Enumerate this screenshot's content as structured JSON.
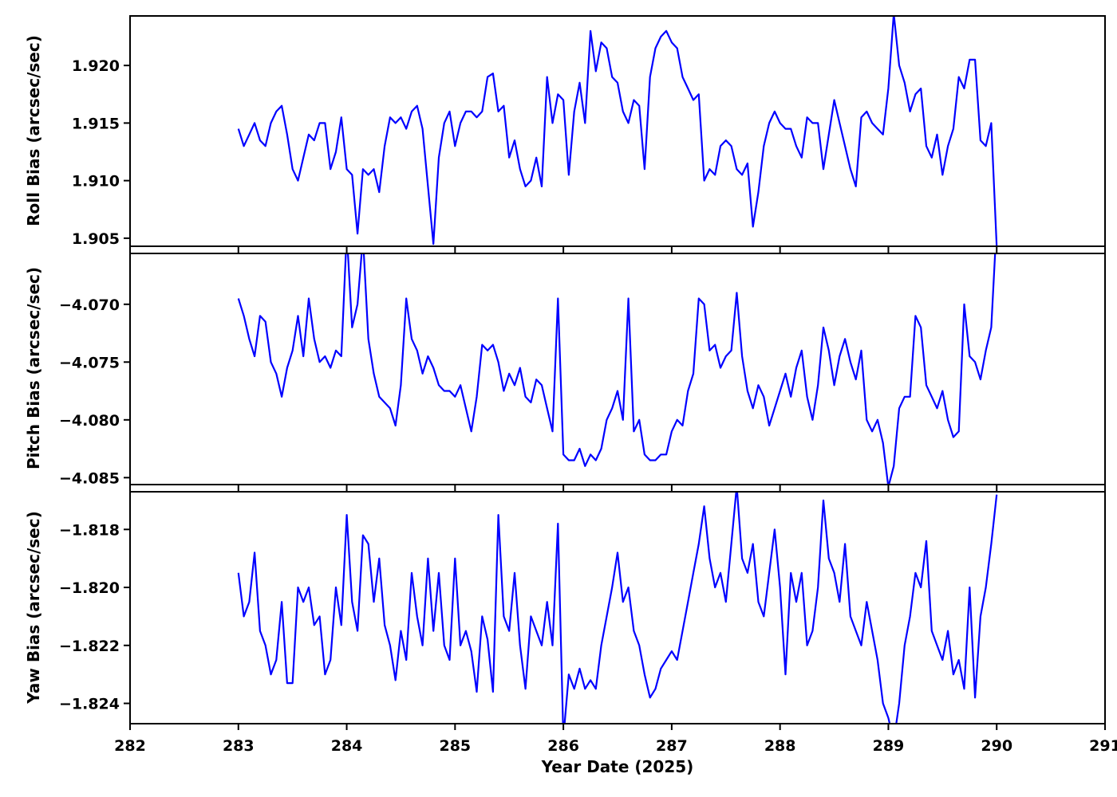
{
  "xlabel": "Year Date (2025)",
  "xlim": [
    282,
    291
  ],
  "x_ticks": [
    282,
    283,
    284,
    285,
    286,
    287,
    288,
    289,
    290,
    291
  ],
  "x_tick_labels": [
    "282",
    "283",
    "284",
    "285",
    "286",
    "287",
    "288",
    "289",
    "290",
    "291"
  ],
  "line_color": "#0000ff",
  "background_color": "#ffffff",
  "chart_data": [
    {
      "type": "line",
      "name": "roll-bias",
      "ylabel": "Roll Bias (arcsec/sec)",
      "ylim": [
        1.9043,
        1.9243
      ],
      "y_ticks": [
        1.905,
        1.91,
        1.915,
        1.92
      ],
      "y_tick_labels": [
        "1.905",
        "1.910",
        "1.915",
        "1.920"
      ],
      "x_start": 283.0,
      "x_step": 0.05,
      "y": [
        1.9145,
        1.913,
        1.914,
        1.915,
        1.9135,
        1.913,
        1.915,
        1.916,
        1.9165,
        1.914,
        1.911,
        1.91,
        1.912,
        1.914,
        1.9135,
        1.915,
        1.915,
        1.911,
        1.9125,
        1.9155,
        1.911,
        1.9105,
        1.9054,
        1.911,
        1.9105,
        1.911,
        1.909,
        1.913,
        1.9155,
        1.915,
        1.9155,
        1.9145,
        1.916,
        1.9165,
        1.9145,
        1.9095,
        1.9045,
        1.912,
        1.915,
        1.916,
        1.913,
        1.915,
        1.916,
        1.916,
        1.9155,
        1.916,
        1.919,
        1.9193,
        1.916,
        1.9165,
        1.912,
        1.9135,
        1.911,
        1.9095,
        1.91,
        1.912,
        1.9095,
        1.919,
        1.915,
        1.9175,
        1.917,
        1.9105,
        1.916,
        1.9185,
        1.915,
        1.923,
        1.9195,
        1.922,
        1.9215,
        1.919,
        1.9185,
        1.916,
        1.915,
        1.917,
        1.9165,
        1.911,
        1.919,
        1.9215,
        1.9225,
        1.923,
        1.922,
        1.9215,
        1.919,
        1.918,
        1.917,
        1.9175,
        1.91,
        1.911,
        1.9105,
        1.913,
        1.9135,
        1.913,
        1.911,
        1.9105,
        1.9115,
        1.906,
        1.909,
        1.913,
        1.915,
        1.916,
        1.915,
        1.9145,
        1.9145,
        1.913,
        1.912,
        1.9155,
        1.915,
        1.915,
        1.911,
        1.914,
        1.917,
        1.915,
        1.913,
        1.911,
        1.9095,
        1.9155,
        1.916,
        1.915,
        1.9145,
        1.914,
        1.918,
        1.9245,
        1.92,
        1.9185,
        1.916,
        1.9175,
        1.918,
        1.913,
        1.912,
        1.914,
        1.9105,
        1.913,
        1.9145,
        1.919,
        1.918,
        1.9205,
        1.9205,
        1.9135,
        1.913,
        1.915,
        1.9043
      ]
    },
    {
      "type": "line",
      "name": "pitch-bias",
      "ylabel": "Pitch Bias (arcsec/sec)",
      "ylim": [
        -4.0856,
        -4.0656
      ],
      "y_ticks": [
        -4.085,
        -4.08,
        -4.075,
        -4.07
      ],
      "y_tick_labels": [
        "−4.085",
        "−4.080",
        "−4.075",
        "−4.070"
      ],
      "x_start": 283.0,
      "x_step": 0.05,
      "y": [
        -4.0695,
        -4.071,
        -4.073,
        -4.0745,
        -4.071,
        -4.0715,
        -4.075,
        -4.076,
        -4.078,
        -4.0755,
        -4.074,
        -4.071,
        -4.0745,
        -4.0695,
        -4.073,
        -4.075,
        -4.0745,
        -4.0755,
        -4.074,
        -4.0745,
        -4.0638,
        -4.072,
        -4.07,
        -4.0642,
        -4.073,
        -4.076,
        -4.078,
        -4.0785,
        -4.079,
        -4.0805,
        -4.077,
        -4.0695,
        -4.073,
        -4.074,
        -4.076,
        -4.0745,
        -4.0755,
        -4.077,
        -4.0775,
        -4.0775,
        -4.078,
        -4.077,
        -4.079,
        -4.081,
        -4.078,
        -4.0735,
        -4.074,
        -4.0735,
        -4.075,
        -4.0775,
        -4.076,
        -4.077,
        -4.0755,
        -4.078,
        -4.0785,
        -4.0765,
        -4.077,
        -4.079,
        -4.081,
        -4.0695,
        -4.083,
        -4.0835,
        -4.0835,
        -4.0825,
        -4.084,
        -4.083,
        -4.0835,
        -4.0825,
        -4.08,
        -4.079,
        -4.0775,
        -4.08,
        -4.0695,
        -4.081,
        -4.08,
        -4.083,
        -4.0835,
        -4.0835,
        -4.083,
        -4.083,
        -4.081,
        -4.08,
        -4.0805,
        -4.0775,
        -4.076,
        -4.0695,
        -4.07,
        -4.074,
        -4.0735,
        -4.0755,
        -4.0745,
        -4.074,
        -4.069,
        -4.0745,
        -4.0775,
        -4.079,
        -4.077,
        -4.078,
        -4.0805,
        -4.079,
        -4.0775,
        -4.076,
        -4.078,
        -4.0755,
        -4.074,
        -4.078,
        -4.08,
        -4.077,
        -4.072,
        -4.074,
        -4.077,
        -4.0745,
        -4.073,
        -4.075,
        -4.0765,
        -4.074,
        -4.08,
        -4.081,
        -4.08,
        -4.082,
        -4.0858,
        -4.084,
        -4.079,
        -4.078,
        -4.078,
        -4.071,
        -4.072,
        -4.077,
        -4.078,
        -4.079,
        -4.0775,
        -4.08,
        -4.0815,
        -4.081,
        -4.07,
        -4.0745,
        -4.075,
        -4.0765,
        -4.074,
        -4.072,
        -4.063
      ]
    },
    {
      "type": "line",
      "name": "yaw-bias",
      "ylabel": "Yaw Bias (arcsec/sec)",
      "ylim": [
        -1.8247,
        -1.8167
      ],
      "y_ticks": [
        -1.824,
        -1.822,
        -1.82,
        -1.818
      ],
      "y_tick_labels": [
        "−1.824",
        "−1.822",
        "−1.820",
        "−1.818"
      ],
      "x_start": 283.0,
      "x_step": 0.05,
      "y": [
        -1.8195,
        -1.821,
        -1.8205,
        -1.8188,
        -1.8215,
        -1.822,
        -1.823,
        -1.8225,
        -1.8205,
        -1.8233,
        -1.8233,
        -1.82,
        -1.8205,
        -1.82,
        -1.8213,
        -1.821,
        -1.823,
        -1.8225,
        -1.82,
        -1.8213,
        -1.8175,
        -1.8205,
        -1.8215,
        -1.8182,
        -1.8185,
        -1.8205,
        -1.819,
        -1.8213,
        -1.822,
        -1.8232,
        -1.8215,
        -1.8225,
        -1.8195,
        -1.821,
        -1.822,
        -1.819,
        -1.8215,
        -1.8195,
        -1.822,
        -1.8225,
        -1.819,
        -1.822,
        -1.8215,
        -1.8222,
        -1.8236,
        -1.821,
        -1.8218,
        -1.8236,
        -1.8175,
        -1.821,
        -1.8215,
        -1.8195,
        -1.822,
        -1.8235,
        -1.821,
        -1.8215,
        -1.822,
        -1.8205,
        -1.822,
        -1.8178,
        -1.8252,
        -1.823,
        -1.8235,
        -1.8228,
        -1.8235,
        -1.8232,
        -1.8235,
        -1.822,
        -1.821,
        -1.82,
        -1.8188,
        -1.8205,
        -1.82,
        -1.8215,
        -1.822,
        -1.823,
        -1.8238,
        -1.8235,
        -1.8228,
        -1.8225,
        -1.8222,
        -1.8225,
        -1.8215,
        -1.8205,
        -1.8195,
        -1.8185,
        -1.8172,
        -1.819,
        -1.82,
        -1.8195,
        -1.8205,
        -1.8185,
        -1.8165,
        -1.819,
        -1.8195,
        -1.8185,
        -1.8205,
        -1.821,
        -1.8195,
        -1.818,
        -1.82,
        -1.823,
        -1.8195,
        -1.8205,
        -1.8195,
        -1.822,
        -1.8215,
        -1.82,
        -1.817,
        -1.819,
        -1.8195,
        -1.8205,
        -1.8185,
        -1.821,
        -1.8215,
        -1.822,
        -1.8205,
        -1.8215,
        -1.8225,
        -1.824,
        -1.8245,
        -1.8253,
        -1.824,
        -1.822,
        -1.821,
        -1.8195,
        -1.82,
        -1.8184,
        -1.8215,
        -1.822,
        -1.8225,
        -1.8215,
        -1.823,
        -1.8225,
        -1.8235,
        -1.82,
        -1.8238,
        -1.821,
        -1.82,
        -1.8185,
        -1.8168
      ]
    }
  ]
}
